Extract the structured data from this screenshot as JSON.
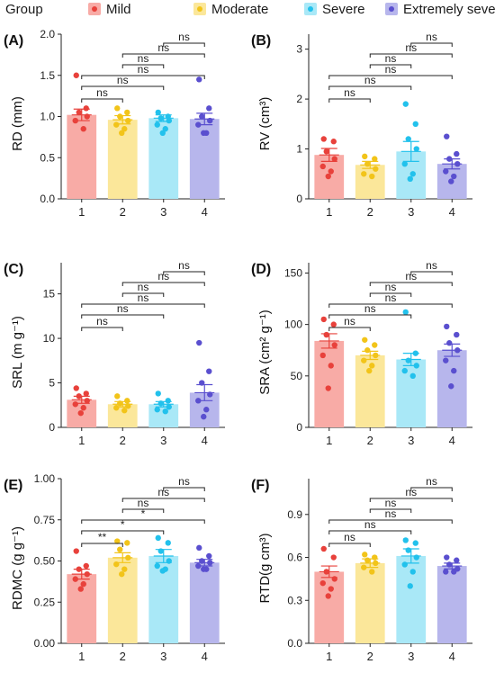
{
  "legend": {
    "title": "Group",
    "items": [
      {
        "label": "Mild",
        "fill": "#f8aba6",
        "dot": "#e8413b"
      },
      {
        "label": "Moderate",
        "fill": "#fbe79a",
        "dot": "#f2c419"
      },
      {
        "label": "Severe",
        "fill": "#a9e8f7",
        "dot": "#22c1ec"
      },
      {
        "label": "Extremely severe",
        "fill": "#b7b6ec",
        "dot": "#5a4fcf"
      }
    ]
  },
  "chart_data": [
    {
      "type": "bar",
      "panel_label": "(A)",
      "ylabel": "RD (mm)",
      "categories": [
        "1",
        "2",
        "3",
        "4"
      ],
      "values": [
        1.02,
        0.96,
        0.98,
        0.97
      ],
      "errors": [
        0.07,
        0.05,
        0.04,
        0.07
      ],
      "points": [
        [
          1.5,
          1.1,
          1.05,
          1.0,
          0.95,
          0.85
        ],
        [
          1.1,
          1.05,
          1.0,
          0.95,
          0.9,
          0.85,
          0.8
        ],
        [
          1.05,
          1.0,
          0.98,
          0.95,
          0.9,
          0.85,
          0.8
        ],
        [
          1.45,
          1.1,
          1.0,
          0.95,
          0.9,
          0.8,
          0.8
        ]
      ],
      "ylim": [
        0,
        2.0
      ],
      "yticks": [
        0.0,
        0.5,
        1.0,
        1.5,
        2.0
      ],
      "yticklabels": [
        "0.0",
        "0.5",
        "1.0",
        "1.5",
        "2.0"
      ],
      "comparisons": [
        {
          "from": "1",
          "to": "2",
          "label": "ns"
        },
        {
          "from": "1",
          "to": "3",
          "label": "ns"
        },
        {
          "from": "1",
          "to": "4",
          "label": "ns"
        },
        {
          "from": "2",
          "to": "3",
          "label": "ns"
        },
        {
          "from": "2",
          "to": "4",
          "label": "ns"
        },
        {
          "from": "3",
          "to": "4",
          "label": "ns"
        }
      ]
    },
    {
      "type": "bar",
      "panel_label": "(B)",
      "ylabel": "RV (cm³)",
      "categories": [
        "1",
        "2",
        "3",
        "4"
      ],
      "values": [
        0.88,
        0.68,
        0.95,
        0.7
      ],
      "errors": [
        0.13,
        0.07,
        0.2,
        0.1
      ],
      "points": [
        [
          1.2,
          1.15,
          0.95,
          0.8,
          0.65,
          0.55,
          0.45
        ],
        [
          0.85,
          0.8,
          0.7,
          0.6,
          0.5,
          0.45
        ],
        [
          1.9,
          1.5,
          1.2,
          1.0,
          0.7,
          0.5,
          0.4
        ],
        [
          1.25,
          0.9,
          0.8,
          0.7,
          0.55,
          0.45,
          0.35
        ]
      ],
      "ylim": [
        0,
        3.3
      ],
      "yticks": [
        0,
        1,
        2,
        3
      ],
      "yticklabels": [
        "0",
        "1",
        "2",
        "3"
      ],
      "comparisons": [
        {
          "from": "1",
          "to": "2",
          "label": "ns"
        },
        {
          "from": "1",
          "to": "3",
          "label": "ns"
        },
        {
          "from": "1",
          "to": "4",
          "label": "ns"
        },
        {
          "from": "2",
          "to": "3",
          "label": "ns"
        },
        {
          "from": "2",
          "to": "4",
          "label": "ns"
        },
        {
          "from": "3",
          "to": "4",
          "label": "ns"
        }
      ]
    },
    {
      "type": "bar",
      "panel_label": "(C)",
      "ylabel": "SRL (m g⁻¹)",
      "categories": [
        "1",
        "2",
        "3",
        "4"
      ],
      "values": [
        3.1,
        2.6,
        2.6,
        3.9
      ],
      "errors": [
        0.4,
        0.3,
        0.3,
        0.9
      ],
      "points": [
        [
          4.4,
          3.8,
          3.5,
          3.0,
          2.6,
          2.2,
          1.6
        ],
        [
          3.5,
          3.0,
          2.7,
          2.4,
          2.2,
          1.9
        ],
        [
          3.8,
          3.0,
          2.7,
          2.3,
          2.0,
          1.8
        ],
        [
          9.5,
          6.3,
          5.0,
          3.7,
          3.0,
          2.0,
          1.2
        ]
      ],
      "ylim": [
        0,
        18.5
      ],
      "yticks": [
        0,
        5,
        10,
        15
      ],
      "yticklabels": [
        "0",
        "5",
        "10",
        "15"
      ],
      "comparisons": [
        {
          "from": "1",
          "to": "2",
          "label": "ns"
        },
        {
          "from": "1",
          "to": "3",
          "label": "ns"
        },
        {
          "from": "1",
          "to": "4",
          "label": "ns"
        },
        {
          "from": "2",
          "to": "3",
          "label": "ns"
        },
        {
          "from": "2",
          "to": "4",
          "label": "ns"
        },
        {
          "from": "3",
          "to": "4",
          "label": "ns"
        }
      ]
    },
    {
      "type": "bar",
      "panel_label": "(D)",
      "ylabel": "SRA (cm² g⁻¹)",
      "categories": [
        "1",
        "2",
        "3",
        "4"
      ],
      "values": [
        84,
        70,
        66,
        75
      ],
      "errors": [
        7,
        4,
        6,
        6
      ],
      "points": [
        [
          105,
          100,
          90,
          80,
          70,
          60,
          38
        ],
        [
          85,
          80,
          75,
          70,
          65,
          60,
          55
        ],
        [
          112,
          72,
          65,
          60,
          55,
          50
        ],
        [
          98,
          90,
          82,
          75,
          65,
          55,
          40
        ]
      ],
      "ylim": [
        0,
        160
      ],
      "yticks": [
        0,
        50,
        100,
        150
      ],
      "yticklabels": [
        "0",
        "50",
        "100",
        "150"
      ],
      "comparisons": [
        {
          "from": "1",
          "to": "2",
          "label": "ns"
        },
        {
          "from": "1",
          "to": "3",
          "label": "ns"
        },
        {
          "from": "1",
          "to": "4",
          "label": "ns"
        },
        {
          "from": "2",
          "to": "3",
          "label": "ns"
        },
        {
          "from": "2",
          "to": "4",
          "label": "ns"
        },
        {
          "from": "3",
          "to": "4",
          "label": "ns"
        }
      ]
    },
    {
      "type": "bar",
      "panel_label": "(E)",
      "ylabel": "RDMC (g g⁻¹)",
      "categories": [
        "1",
        "2",
        "3",
        "4"
      ],
      "values": [
        0.42,
        0.52,
        0.53,
        0.49
      ],
      "errors": [
        0.03,
        0.03,
        0.04,
        0.02
      ],
      "points": [
        [
          0.56,
          0.47,
          0.45,
          0.42,
          0.39,
          0.36,
          0.33
        ],
        [
          0.62,
          0.61,
          0.57,
          0.52,
          0.48,
          0.45,
          0.42
        ],
        [
          0.64,
          0.61,
          0.56,
          0.5,
          0.47,
          0.45,
          0.44
        ],
        [
          0.58,
          0.53,
          0.5,
          0.49,
          0.47,
          0.45,
          0.45
        ]
      ],
      "ylim": [
        0,
        1.0
      ],
      "yticks": [
        0.0,
        0.25,
        0.5,
        0.75,
        1.0
      ],
      "yticklabels": [
        "0.00",
        "0.25",
        "0.50",
        "0.75",
        "1.00"
      ],
      "comparisons": [
        {
          "from": "1",
          "to": "2",
          "label": "**"
        },
        {
          "from": "1",
          "to": "3",
          "label": "*"
        },
        {
          "from": "1",
          "to": "4",
          "label": "*"
        },
        {
          "from": "2",
          "to": "3",
          "label": "ns"
        },
        {
          "from": "2",
          "to": "4",
          "label": "ns"
        },
        {
          "from": "3",
          "to": "4",
          "label": "ns"
        }
      ]
    },
    {
      "type": "bar",
      "panel_label": "(F)",
      "ylabel": "RTD(g cm³)",
      "categories": [
        "1",
        "2",
        "3",
        "4"
      ],
      "values": [
        0.5,
        0.56,
        0.61,
        0.54
      ],
      "errors": [
        0.04,
        0.03,
        0.05,
        0.02
      ],
      "points": [
        [
          0.66,
          0.6,
          0.5,
          0.45,
          0.42,
          0.38,
          0.33
        ],
        [
          0.62,
          0.6,
          0.58,
          0.56,
          0.53,
          0.5
        ],
        [
          0.72,
          0.7,
          0.65,
          0.6,
          0.55,
          0.5,
          0.4
        ],
        [
          0.6,
          0.58,
          0.55,
          0.52,
          0.5,
          0.5
        ]
      ],
      "ylim": [
        0,
        1.15
      ],
      "yticks": [
        0.0,
        0.3,
        0.6,
        0.9
      ],
      "yticklabels": [
        "0.0",
        "0.3",
        "0.6",
        "0.9"
      ],
      "comparisons": [
        {
          "from": "1",
          "to": "2",
          "label": "ns"
        },
        {
          "from": "1",
          "to": "3",
          "label": "ns"
        },
        {
          "from": "1",
          "to": "4",
          "label": "ns"
        },
        {
          "from": "2",
          "to": "3",
          "label": "ns"
        },
        {
          "from": "2",
          "to": "4",
          "label": "ns"
        },
        {
          "from": "3",
          "to": "4",
          "label": "ns"
        }
      ]
    }
  ]
}
